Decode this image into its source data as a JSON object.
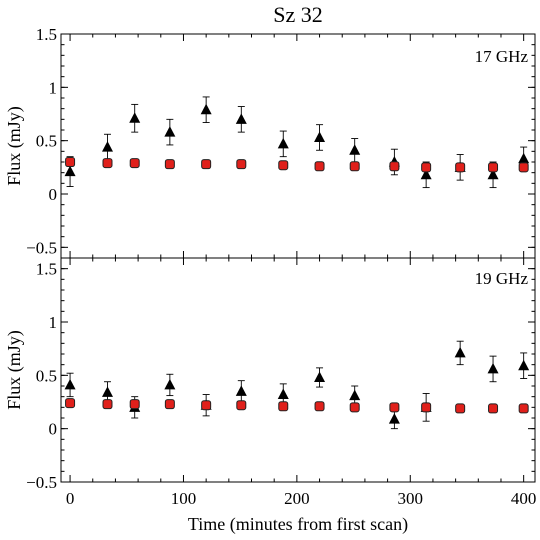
{
  "chart_data": {
    "type": "scatter",
    "title": "Sz 32",
    "xlabel": "Time (minutes from first scan)",
    "xlim": [
      -8,
      410
    ],
    "xticks": [
      0,
      100,
      200,
      300,
      400
    ],
    "xtick_labels": [
      "0",
      "100",
      "200",
      "300",
      "400"
    ],
    "grid": false,
    "panels": [
      {
        "label": "17 GHz",
        "ylabel": "Flux (mJy)",
        "ylim": [
          -0.6,
          1.5
        ],
        "yticks": [
          -0.5,
          0,
          0.5,
          1,
          1.5
        ],
        "ytick_labels": [
          "−0.5",
          "0",
          "0.5",
          "1",
          "1.5"
        ],
        "series": [
          {
            "marker": "triangle",
            "color": "#000000",
            "points": [
              {
                "x": 0,
                "y": 0.21,
                "err": 0.14
              },
              {
                "x": 33,
                "y": 0.44,
                "err": 0.12
              },
              {
                "x": 57,
                "y": 0.71,
                "err": 0.13
              },
              {
                "x": 88,
                "y": 0.58,
                "err": 0.12
              },
              {
                "x": 120,
                "y": 0.79,
                "err": 0.12
              },
              {
                "x": 151,
                "y": 0.7,
                "err": 0.12
              },
              {
                "x": 188,
                "y": 0.47,
                "err": 0.12
              },
              {
                "x": 220,
                "y": 0.53,
                "err": 0.12
              },
              {
                "x": 251,
                "y": 0.41,
                "err": 0.11
              },
              {
                "x": 286,
                "y": 0.3,
                "err": 0.12
              },
              {
                "x": 314,
                "y": 0.18,
                "err": 0.12
              },
              {
                "x": 344,
                "y": 0.25,
                "err": 0.12
              },
              {
                "x": 373,
                "y": 0.18,
                "err": 0.12
              },
              {
                "x": 400,
                "y": 0.33,
                "err": 0.11
              }
            ]
          },
          {
            "marker": "square",
            "color": "#e0201b",
            "points": [
              {
                "x": 0,
                "y": 0.3
              },
              {
                "x": 33,
                "y": 0.29
              },
              {
                "x": 57,
                "y": 0.29
              },
              {
                "x": 88,
                "y": 0.28
              },
              {
                "x": 120,
                "y": 0.28
              },
              {
                "x": 151,
                "y": 0.28
              },
              {
                "x": 188,
                "y": 0.27
              },
              {
                "x": 220,
                "y": 0.26
              },
              {
                "x": 251,
                "y": 0.26
              },
              {
                "x": 286,
                "y": 0.26
              },
              {
                "x": 314,
                "y": 0.25
              },
              {
                "x": 344,
                "y": 0.25
              },
              {
                "x": 373,
                "y": 0.25
              },
              {
                "x": 400,
                "y": 0.25
              }
            ]
          }
        ]
      },
      {
        "label": "19 GHz",
        "ylabel": "Flux (mJy)",
        "ylim": [
          -0.5,
          1.6
        ],
        "yticks": [
          -0.5,
          0,
          0.5,
          1,
          1.5
        ],
        "ytick_labels": [
          "−0.5",
          "0",
          "0.5",
          "1",
          "1.5"
        ],
        "series": [
          {
            "marker": "triangle",
            "color": "#000000",
            "points": [
              {
                "x": 0,
                "y": 0.41,
                "err": 0.11
              },
              {
                "x": 33,
                "y": 0.34,
                "err": 0.1
              },
              {
                "x": 57,
                "y": 0.2,
                "err": 0.1
              },
              {
                "x": 88,
                "y": 0.41,
                "err": 0.1
              },
              {
                "x": 120,
                "y": 0.22,
                "err": 0.1
              },
              {
                "x": 151,
                "y": 0.35,
                "err": 0.1
              },
              {
                "x": 188,
                "y": 0.32,
                "err": 0.1
              },
              {
                "x": 220,
                "y": 0.48,
                "err": 0.09
              },
              {
                "x": 251,
                "y": 0.31,
                "err": 0.09
              },
              {
                "x": 286,
                "y": 0.09,
                "err": 0.09
              },
              {
                "x": 314,
                "y": 0.2,
                "err": 0.13
              },
              {
                "x": 344,
                "y": 0.71,
                "err": 0.11
              },
              {
                "x": 373,
                "y": 0.56,
                "err": 0.12
              },
              {
                "x": 400,
                "y": 0.59,
                "err": 0.12
              }
            ]
          },
          {
            "marker": "square",
            "color": "#e0201b",
            "points": [
              {
                "x": 0,
                "y": 0.24
              },
              {
                "x": 33,
                "y": 0.23
              },
              {
                "x": 57,
                "y": 0.23
              },
              {
                "x": 88,
                "y": 0.23
              },
              {
                "x": 120,
                "y": 0.22
              },
              {
                "x": 151,
                "y": 0.22
              },
              {
                "x": 188,
                "y": 0.21
              },
              {
                "x": 220,
                "y": 0.21
              },
              {
                "x": 251,
                "y": 0.2
              },
              {
                "x": 286,
                "y": 0.2
              },
              {
                "x": 314,
                "y": 0.2
              },
              {
                "x": 344,
                "y": 0.19
              },
              {
                "x": 373,
                "y": 0.19
              },
              {
                "x": 400,
                "y": 0.19
              }
            ]
          }
        ]
      }
    ]
  }
}
